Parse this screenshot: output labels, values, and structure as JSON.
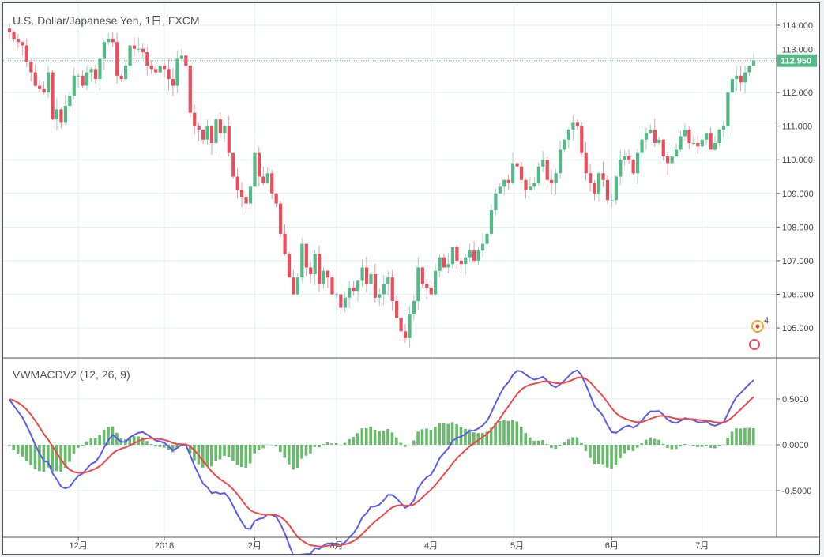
{
  "chart_data": {
    "type": "candlestick",
    "title": "U.S. Dollar/Japanese Yen, 1日, FXCM",
    "indicator_title": "VWMACDV2 (12, 26, 9)",
    "last_price": "112.950",
    "price_ticks": [
      "114.000",
      "113.000",
      "112.000",
      "111.000",
      "110.000",
      "109.000",
      "108.000",
      "107.000",
      "106.000",
      "105.000"
    ],
    "price_range": [
      104.3,
      114.5
    ],
    "macd_ticks": [
      "0.5000",
      "0.0000",
      "-0.5000"
    ],
    "macd_range": [
      -0.95,
      0.95
    ],
    "x_ticks": [
      {
        "label": "12月",
        "bar": 16
      },
      {
        "label": "2018",
        "bar": 36
      },
      {
        "label": "2月",
        "bar": 57
      },
      {
        "label": "3月",
        "bar": 76
      },
      {
        "label": "4月",
        "bar": 98
      },
      {
        "label": "5月",
        "bar": 118
      },
      {
        "label": "6月",
        "bar": 140
      },
      {
        "label": "7月",
        "bar": 161
      }
    ],
    "closes": [
      113.8,
      113.6,
      113.5,
      113.4,
      112.9,
      112.6,
      112.2,
      112.1,
      112.0,
      112.6,
      111.2,
      111.5,
      111.1,
      111.6,
      111.9,
      112.5,
      112.5,
      112.2,
      112.6,
      112.7,
      112.4,
      113.0,
      113.5,
      113.6,
      113.5,
      112.5,
      112.4,
      112.8,
      113.4,
      113.3,
      113.3,
      113.2,
      112.8,
      112.7,
      112.6,
      112.8,
      112.7,
      112.4,
      112.2,
      113.0,
      113.1,
      112.8,
      111.4,
      111.0,
      110.9,
      110.6,
      111.0,
      110.5,
      111.2,
      110.8,
      111.0,
      110.2,
      109.5,
      109.1,
      108.9,
      108.7,
      109.2,
      110.2,
      109.5,
      109.3,
      109.6,
      109.0,
      108.7,
      107.8,
      107.2,
      106.5,
      106.0,
      106.5,
      107.5,
      106.8,
      106.6,
      107.2,
      106.3,
      106.7,
      106.5,
      106.0,
      106.0,
      105.6,
      105.9,
      106.2,
      106.1,
      106.4,
      106.8,
      106.3,
      106.6,
      105.9,
      106.0,
      106.3,
      106.5,
      105.8,
      105.3,
      104.9,
      104.7,
      105.4,
      105.8,
      106.8,
      106.3,
      106.2,
      106.0,
      106.7,
      107.1,
      106.8,
      106.9,
      107.4,
      107.0,
      106.9,
      107.1,
      107.3,
      107.0,
      107.3,
      107.5,
      107.8,
      108.5,
      109.0,
      109.2,
      109.4,
      109.3,
      109.9,
      109.8,
      109.4,
      109.1,
      109.2,
      109.3,
      109.8,
      110.0,
      109.4,
      109.3,
      109.6,
      110.3,
      110.6,
      110.9,
      111.1,
      111.0,
      110.2,
      109.6,
      109.3,
      109.0,
      109.6,
      109.4,
      108.8,
      108.8,
      109.5,
      110.0,
      110.1,
      110.0,
      109.6,
      110.2,
      110.6,
      110.8,
      110.9,
      110.5,
      110.6,
      110.1,
      109.9,
      110.1,
      110.3,
      110.7,
      110.9,
      110.5,
      110.5,
      110.4,
      110.6,
      110.8,
      110.3,
      110.5,
      110.9,
      111.0,
      112.0,
      112.4,
      112.5,
      112.3,
      112.6,
      112.8,
      112.95
    ],
    "colors": {
      "up": "#53b987",
      "down": "#eb4d5c",
      "macd": "#5b5bf0",
      "signal": "#f04848",
      "hist": "#4caf50"
    },
    "markers": {
      "events_count": "4"
    }
  }
}
